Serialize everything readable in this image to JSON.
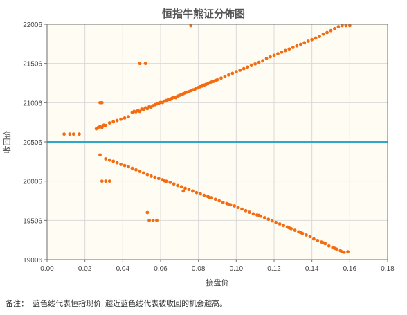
{
  "colors": {
    "plot_background": "#fffdf3",
    "grid": "#d9d9d9",
    "axis": "#6e6e6e",
    "points": "#f36c12",
    "current_index_line": "#2ea8c9",
    "text": "#444444"
  },
  "footnote": {
    "label": "备注：",
    "text": "蓝色线代表恒指现价, 越近蓝色线代表被收回的机会越高。"
  },
  "chart_data": {
    "type": "scatter",
    "title": "恒指牛熊证分佈图",
    "xlabel": "接盘价",
    "ylabel": "收回价",
    "xlim": [
      0,
      0.18
    ],
    "ylim": [
      19006,
      22006
    ],
    "x_ticks": [
      0,
      0.02,
      0.04,
      0.06,
      0.08,
      0.1,
      0.12,
      0.14,
      0.16,
      0.18
    ],
    "x_tick_labels": [
      "0.00",
      "0.02",
      "0.04",
      "0.06",
      "0.08",
      "0.10",
      "0.12",
      "0.14",
      "0.16",
      "0.18"
    ],
    "y_ticks": [
      19006,
      19506,
      20006,
      20506,
      21006,
      21506,
      22006
    ],
    "y_tick_labels": [
      "19006",
      "19506",
      "20006",
      "20506",
      "21006",
      "21506",
      "22006"
    ],
    "grid": true,
    "reference_line": {
      "y": 20506,
      "orientation": "horizontal"
    },
    "series": [
      {
        "points": [
          [
            0.009,
            20606
          ],
          [
            0.012,
            20606
          ],
          [
            0.014,
            20606
          ],
          [
            0.017,
            20606
          ],
          [
            0.026,
            20673
          ],
          [
            0.027,
            20689
          ],
          [
            0.028,
            20705
          ],
          [
            0.029,
            20690
          ],
          [
            0.03,
            20720
          ],
          [
            0.031,
            20715
          ],
          [
            0.028,
            21006
          ],
          [
            0.029,
            21006
          ],
          [
            0.033,
            20748
          ],
          [
            0.035,
            20763
          ],
          [
            0.037,
            20779
          ],
          [
            0.039,
            20795
          ],
          [
            0.041,
            20811
          ],
          [
            0.043,
            20827
          ],
          [
            0.045,
            20880
          ],
          [
            0.046,
            20895
          ],
          [
            0.047,
            20890
          ],
          [
            0.048,
            20905
          ],
          [
            0.049,
            20895
          ],
          [
            0.05,
            20925
          ],
          [
            0.051,
            20920
          ],
          [
            0.052,
            20940
          ],
          [
            0.053,
            20930
          ],
          [
            0.054,
            20955
          ],
          [
            0.055,
            20950
          ],
          [
            0.056,
            20968
          ],
          [
            0.057,
            20980
          ],
          [
            0.058,
            20990
          ],
          [
            0.059,
            21000
          ],
          [
            0.06,
            21010
          ],
          [
            0.061,
            21008
          ],
          [
            0.062,
            21025
          ],
          [
            0.063,
            21035
          ],
          [
            0.064,
            21045
          ],
          [
            0.065,
            21045
          ],
          [
            0.066,
            21063
          ],
          [
            0.067,
            21075
          ],
          [
            0.068,
            21070
          ],
          [
            0.069,
            21090
          ],
          [
            0.07,
            21100
          ],
          [
            0.071,
            21110
          ],
          [
            0.072,
            21120
          ],
          [
            0.073,
            21130
          ],
          [
            0.074,
            21140
          ],
          [
            0.075,
            21145
          ],
          [
            0.076,
            21160
          ],
          [
            0.077,
            21170
          ],
          [
            0.078,
            21175
          ],
          [
            0.079,
            21190
          ],
          [
            0.08,
            21200
          ],
          [
            0.081,
            21210
          ],
          [
            0.082,
            21218
          ],
          [
            0.083,
            21230
          ],
          [
            0.084,
            21240
          ],
          [
            0.085,
            21248
          ],
          [
            0.086,
            21260
          ],
          [
            0.087,
            21270
          ],
          [
            0.088,
            21278
          ],
          [
            0.089,
            21290
          ],
          [
            0.09,
            21298
          ],
          [
            0.092,
            21320
          ],
          [
            0.094,
            21340
          ],
          [
            0.096,
            21360
          ],
          [
            0.098,
            21380
          ],
          [
            0.1,
            21400
          ],
          [
            0.102,
            21420
          ],
          [
            0.104,
            21440
          ],
          [
            0.106,
            21460
          ],
          [
            0.108,
            21480
          ],
          [
            0.11,
            21500
          ],
          [
            0.112,
            21520
          ],
          [
            0.114,
            21540
          ],
          [
            0.116,
            21570
          ],
          [
            0.118,
            21590
          ],
          [
            0.12,
            21610
          ],
          [
            0.122,
            21630
          ],
          [
            0.124,
            21650
          ],
          [
            0.126,
            21670
          ],
          [
            0.128,
            21690
          ],
          [
            0.13,
            21710
          ],
          [
            0.132,
            21730
          ],
          [
            0.134,
            21750
          ],
          [
            0.136,
            21770
          ],
          [
            0.138,
            21790
          ],
          [
            0.14,
            21810
          ],
          [
            0.142,
            21830
          ],
          [
            0.144,
            21850
          ],
          [
            0.146,
            21880
          ],
          [
            0.148,
            21900
          ],
          [
            0.15,
            21925
          ],
          [
            0.152,
            21950
          ],
          [
            0.154,
            21975
          ],
          [
            0.156,
            21990
          ],
          [
            0.158,
            22000
          ],
          [
            0.16,
            22006
          ],
          [
            0.049,
            21506
          ],
          [
            0.052,
            21506
          ],
          [
            0.076,
            22006
          ]
        ]
      },
      {
        "points": [
          [
            0.028,
            20340
          ],
          [
            0.031,
            20290
          ],
          [
            0.033,
            20275
          ],
          [
            0.035,
            20260
          ],
          [
            0.037,
            20240
          ],
          [
            0.039,
            20220
          ],
          [
            0.041,
            20205
          ],
          [
            0.043,
            20190
          ],
          [
            0.045,
            20170
          ],
          [
            0.047,
            20150
          ],
          [
            0.049,
            20130
          ],
          [
            0.051,
            20110
          ],
          [
            0.053,
            20090
          ],
          [
            0.055,
            20070
          ],
          [
            0.057,
            20055
          ],
          [
            0.059,
            20040
          ],
          [
            0.061,
            20025
          ],
          [
            0.063,
            20005
          ],
          [
            0.065,
            19990
          ],
          [
            0.067,
            19970
          ],
          [
            0.069,
            19950
          ],
          [
            0.071,
            19935
          ],
          [
            0.073,
            19915
          ],
          [
            0.075,
            19900
          ],
          [
            0.077,
            19880
          ],
          [
            0.079,
            19860
          ],
          [
            0.081,
            19845
          ],
          [
            0.083,
            19825
          ],
          [
            0.085,
            19810
          ],
          [
            0.087,
            19795
          ],
          [
            0.089,
            19775
          ],
          [
            0.091,
            19755
          ],
          [
            0.093,
            19735
          ],
          [
            0.095,
            19720
          ],
          [
            0.097,
            19705
          ],
          [
            0.099,
            19690
          ],
          [
            0.101,
            19670
          ],
          [
            0.103,
            19650
          ],
          [
            0.105,
            19630
          ],
          [
            0.107,
            19610
          ],
          [
            0.109,
            19590
          ],
          [
            0.111,
            19575
          ],
          [
            0.113,
            19560
          ],
          [
            0.115,
            19540
          ],
          [
            0.117,
            19520
          ],
          [
            0.119,
            19500
          ],
          [
            0.121,
            19480
          ],
          [
            0.123,
            19460
          ],
          [
            0.125,
            19440
          ],
          [
            0.127,
            19420
          ],
          [
            0.129,
            19400
          ],
          [
            0.131,
            19380
          ],
          [
            0.133,
            19360
          ],
          [
            0.135,
            19340
          ],
          [
            0.137,
            19320
          ],
          [
            0.139,
            19300
          ],
          [
            0.141,
            19270
          ],
          [
            0.143,
            19250
          ],
          [
            0.145,
            19230
          ],
          [
            0.147,
            19210
          ],
          [
            0.149,
            19180
          ],
          [
            0.151,
            19160
          ],
          [
            0.153,
            19140
          ],
          [
            0.155,
            19120
          ],
          [
            0.157,
            19100
          ],
          [
            0.159,
            19106
          ],
          [
            0.029,
            20006
          ],
          [
            0.031,
            20006
          ],
          [
            0.033,
            20006
          ],
          [
            0.053,
            19606
          ],
          [
            0.054,
            19506
          ],
          [
            0.056,
            19506
          ],
          [
            0.058,
            19506
          ],
          [
            0.062,
            20010
          ],
          [
            0.072,
            19880
          ],
          [
            0.086,
            19795
          ],
          [
            0.096,
            19710
          ],
          [
            0.112,
            19570
          ],
          [
            0.128,
            19410
          ],
          [
            0.134,
            19350
          ],
          [
            0.146,
            19220
          ],
          [
            0.152,
            19150
          ],
          [
            0.156,
            19106
          ]
        ]
      }
    ]
  }
}
